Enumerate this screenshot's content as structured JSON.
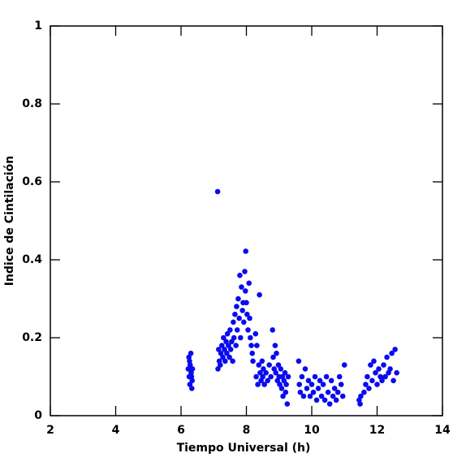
{
  "chart_data": {
    "type": "scatter",
    "xlabel": "Tiempo Universal (h)",
    "ylabel": "Indice de Cintilación",
    "color": "#0a0af0",
    "xlim": [
      2,
      14
    ],
    "xticks": [
      2,
      4,
      6,
      8,
      10,
      12,
      14
    ],
    "ylim": [
      0,
      1
    ],
    "yticks": [
      0,
      0.2,
      0.4,
      0.6,
      0.8,
      1
    ],
    "x": [
      6.22,
      6.24,
      6.25,
      6.27,
      6.28,
      6.3,
      6.31,
      6.33,
      6.34,
      6.35,
      6.26,
      6.32,
      7.12,
      7.13,
      7.15,
      7.17,
      7.2,
      7.22,
      7.25,
      7.28,
      7.3,
      7.33,
      7.35,
      7.38,
      7.4,
      7.42,
      7.45,
      7.48,
      7.5,
      7.52,
      7.55,
      7.58,
      7.6,
      7.62,
      7.65,
      7.68,
      7.7,
      7.72,
      7.75,
      7.78,
      7.8,
      7.82,
      7.85,
      7.88,
      7.9,
      7.92,
      7.95,
      7.97,
      7.98,
      8.0,
      8.02,
      8.05,
      8.08,
      8.1,
      8.12,
      8.15,
      8.18,
      8.2,
      8.28,
      8.3,
      8.32,
      8.35,
      8.38,
      8.4,
      8.42,
      8.45,
      8.48,
      8.5,
      8.52,
      8.55,
      8.6,
      8.65,
      8.7,
      8.75,
      8.8,
      8.82,
      8.85,
      8.88,
      8.9,
      8.92,
      8.95,
      8.98,
      9.0,
      9.02,
      9.05,
      9.08,
      9.1,
      9.12,
      9.15,
      9.18,
      9.2,
      9.22,
      9.25,
      9.28,
      9.6,
      9.62,
      9.65,
      9.7,
      9.75,
      9.8,
      9.85,
      9.9,
      9.95,
      10.0,
      10.05,
      10.1,
      10.15,
      10.2,
      10.25,
      10.3,
      10.35,
      10.4,
      10.45,
      10.5,
      10.55,
      10.6,
      10.65,
      10.7,
      10.75,
      10.8,
      10.85,
      10.9,
      10.95,
      11.0,
      11.45,
      11.48,
      11.5,
      11.6,
      11.65,
      11.7,
      11.75,
      11.8,
      11.85,
      11.9,
      11.95,
      12.0,
      12.05,
      12.1,
      12.15,
      12.2,
      12.25,
      12.3,
      12.35,
      12.4,
      12.45,
      12.5,
      12.55,
      12.6
    ],
    "values": [
      0.12,
      0.15,
      0.1,
      0.08,
      0.13,
      0.16,
      0.11,
      0.07,
      0.09,
      0.12,
      0.14,
      0.1,
      0.575,
      0.12,
      0.17,
      0.14,
      0.13,
      0.16,
      0.18,
      0.15,
      0.2,
      0.17,
      0.14,
      0.19,
      0.16,
      0.21,
      0.18,
      0.15,
      0.22,
      0.17,
      0.19,
      0.14,
      0.24,
      0.2,
      0.26,
      0.18,
      0.28,
      0.22,
      0.3,
      0.25,
      0.36,
      0.2,
      0.33,
      0.27,
      0.29,
      0.24,
      0.37,
      0.32,
      0.422,
      0.29,
      0.26,
      0.22,
      0.34,
      0.25,
      0.2,
      0.18,
      0.16,
      0.14,
      0.21,
      0.1,
      0.18,
      0.08,
      0.13,
      0.31,
      0.11,
      0.09,
      0.14,
      0.1,
      0.12,
      0.08,
      0.11,
      0.09,
      0.13,
      0.1,
      0.22,
      0.15,
      0.12,
      0.18,
      0.11,
      0.16,
      0.09,
      0.13,
      0.1,
      0.08,
      0.12,
      0.07,
      0.1,
      0.05,
      0.09,
      0.11,
      0.06,
      0.08,
      0.03,
      0.1,
      0.14,
      0.08,
      0.06,
      0.1,
      0.05,
      0.12,
      0.07,
      0.09,
      0.05,
      0.08,
      0.06,
      0.1,
      0.04,
      0.07,
      0.09,
      0.05,
      0.08,
      0.04,
      0.1,
      0.06,
      0.03,
      0.09,
      0.05,
      0.07,
      0.04,
      0.06,
      0.1,
      0.08,
      0.05,
      0.13,
      0.04,
      0.03,
      0.05,
      0.06,
      0.08,
      0.1,
      0.07,
      0.13,
      0.09,
      0.14,
      0.11,
      0.08,
      0.12,
      0.1,
      0.09,
      0.13,
      0.1,
      0.15,
      0.11,
      0.12,
      0.16,
      0.09,
      0.17,
      0.11
    ]
  }
}
